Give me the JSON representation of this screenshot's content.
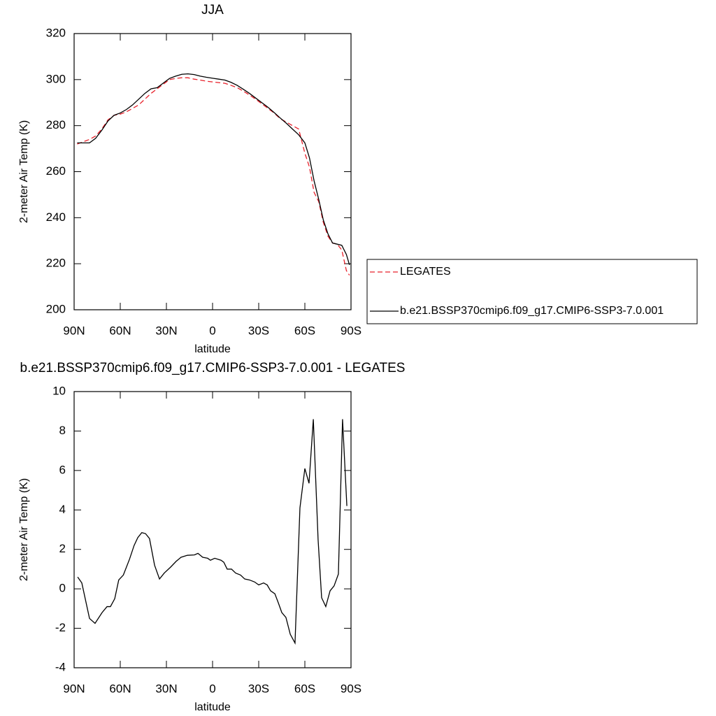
{
  "chart_data": [
    {
      "type": "line",
      "title": "JJA",
      "x_label": "latitude",
      "y_label": "2-meter Air Temp (K)",
      "xlim": [
        90,
        -90
      ],
      "ylim": [
        200,
        320
      ],
      "xticks": [
        {
          "value": 90,
          "label": "90N"
        },
        {
          "value": 60,
          "label": "60N"
        },
        {
          "value": 30,
          "label": "30N"
        },
        0,
        {
          "value": -30,
          "label": "30S"
        },
        {
          "value": -60,
          "label": "60S"
        },
        {
          "value": -90,
          "label": "90S"
        }
      ],
      "yticks": [
        200,
        220,
        240,
        260,
        280,
        300,
        320
      ],
      "legend": "right",
      "x": [
        88,
        84,
        80,
        76,
        72,
        68,
        64,
        60,
        56,
        52,
        48,
        44,
        40,
        36,
        32,
        28,
        24,
        20,
        16,
        12,
        8,
        4,
        0,
        -4,
        -8,
        -12,
        -16,
        -20,
        -24,
        -28,
        -32,
        -36,
        -40,
        -44,
        -48,
        -52,
        -56,
        -60,
        -63,
        -66,
        -69,
        -72,
        -75,
        -78,
        -81,
        -84,
        -87,
        -89
      ],
      "series": [
        {
          "name": "LEGATES",
          "color": "#e8202a",
          "dashed": true,
          "values": [
            272,
            273,
            274,
            275.5,
            278.5,
            282.5,
            284.5,
            285,
            286,
            287.5,
            289,
            291.5,
            294,
            296,
            298,
            300,
            300.5,
            300.8,
            300.8,
            300.2,
            299.8,
            299.3,
            299,
            298.7,
            298.4,
            297.5,
            296.5,
            295,
            293.3,
            291.5,
            289.5,
            287.5,
            285.5,
            283,
            281.5,
            280,
            278.5,
            268,
            262,
            251,
            247,
            238,
            232,
            229,
            228.5,
            226,
            217,
            215
          ]
        },
        {
          "name": "b.e21.BSSP370cmip6.f09_g17.CMIP6-SSP3-7.0.001",
          "color": "#000000",
          "dashed": false,
          "values": [
            272.5,
            272.5,
            272.5,
            274.5,
            278,
            282,
            284.5,
            285.5,
            287,
            289,
            291.5,
            294,
            296,
            296.5,
            298.5,
            300.5,
            301.5,
            302.3,
            302.5,
            302.2,
            301.5,
            301,
            300.6,
            300.2,
            299.8,
            298.8,
            297.5,
            295.8,
            294,
            292,
            290,
            288,
            285.7,
            283.3,
            281,
            278.5,
            276,
            272.5,
            266,
            256,
            248,
            239,
            233,
            229,
            228.5,
            228,
            224,
            219.5
          ]
        }
      ]
    },
    {
      "type": "line",
      "title": "b.e21.BSSP370cmip6.f09_g17.CMIP6-SSP3-7.0.001 - LEGATES",
      "x_label": "latitude",
      "y_label": "2-meter Air Temp (K)",
      "xlim": [
        90,
        -90
      ],
      "ylim": [
        -4,
        10
      ],
      "xticks": [
        {
          "value": 90,
          "label": "90N"
        },
        {
          "value": 60,
          "label": "60N"
        },
        {
          "value": 30,
          "label": "30N"
        },
        0,
        {
          "value": -30,
          "label": "30S"
        },
        {
          "value": -60,
          "label": "60S"
        },
        {
          "value": -90,
          "label": "90S"
        }
      ],
      "yticks": [
        -4,
        -2,
        0,
        2,
        4,
        6,
        8,
        10
      ],
      "x": [
        87.7,
        85,
        80,
        76.4,
        71.8,
        68.6,
        66.4,
        63.6,
        61,
        58,
        54,
        51,
        48.6,
        46,
        43.6,
        41,
        37.7,
        34.5,
        31.4,
        27.3,
        23.6,
        20.5,
        16.4,
        11.8,
        9.5,
        6.4,
        3.2,
        1.4,
        -1.4,
        -5.5,
        -7.3,
        -9.5,
        -12.3,
        -15,
        -18.2,
        -20.9,
        -24,
        -27.3,
        -30,
        -33.2,
        -35.5,
        -37.7,
        -40.5,
        -42.7,
        -45,
        -47.7,
        -50.5,
        -53.6,
        -56.8,
        -60,
        -62.7,
        -65.5,
        -68.6,
        -70.9,
        -73.6,
        -76.4,
        -79,
        -81.8,
        -84.5,
        -87.3
      ],
      "color": "#000000",
      "values": [
        0.6,
        0.3,
        -1.5,
        -1.75,
        -1.2,
        -0.9,
        -0.9,
        -0.5,
        0.45,
        0.7,
        1.5,
        2.2,
        2.6,
        2.85,
        2.8,
        2.55,
        1.2,
        0.5,
        0.8,
        1.1,
        1.4,
        1.6,
        1.7,
        1.72,
        1.8,
        1.6,
        1.55,
        1.45,
        1.55,
        1.45,
        1.35,
        1.0,
        1.0,
        0.8,
        0.7,
        0.5,
        0.45,
        0.35,
        0.2,
        0.3,
        0.2,
        -0.1,
        -0.25,
        -0.7,
        -1.2,
        -1.45,
        -2.3,
        -2.75,
        4.1,
        6.1,
        5.35,
        8.6,
        2.5,
        -0.45,
        -0.9,
        -0.1,
        0.15,
        0.75,
        8.6,
        4.2
      ]
    }
  ]
}
